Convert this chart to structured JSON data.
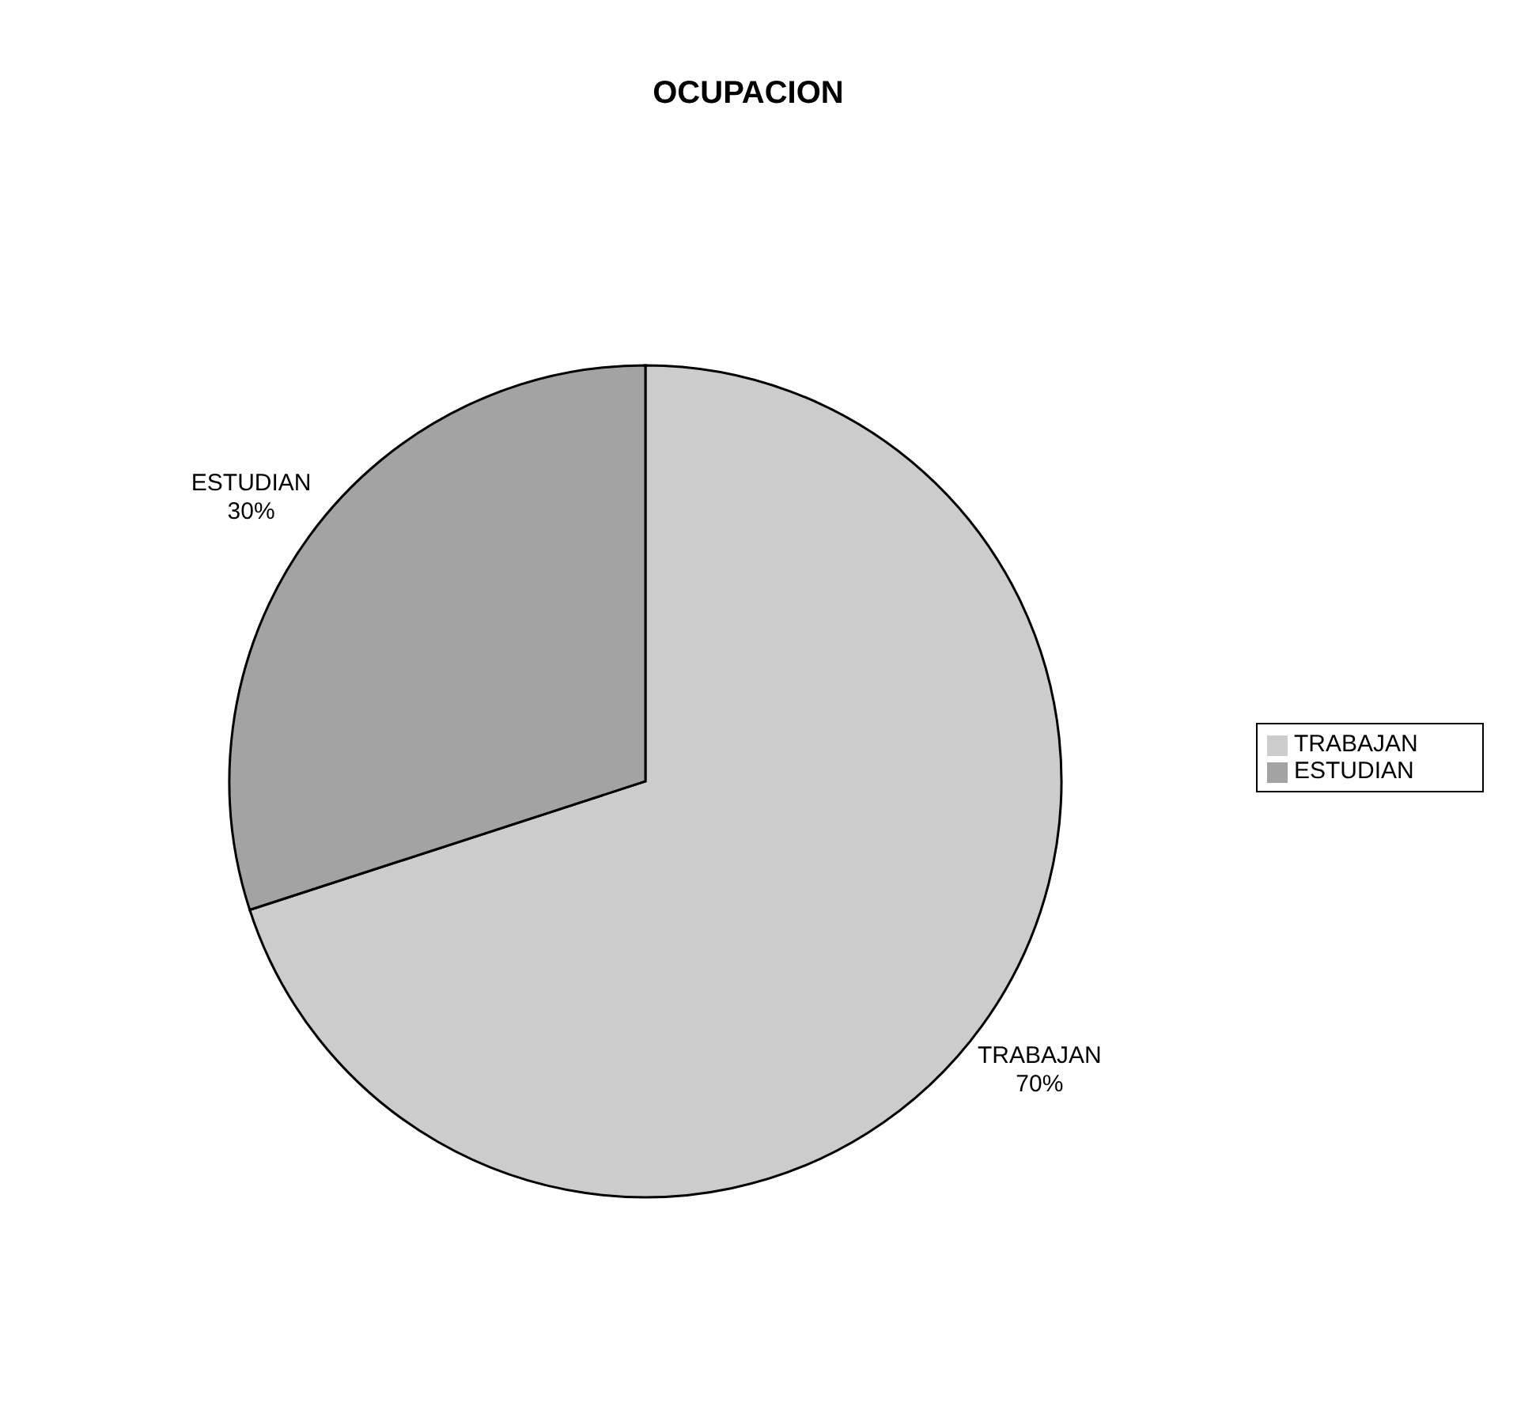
{
  "chart_data": {
    "type": "pie",
    "title": "OCUPACION",
    "categories": [
      "TRABAJAN",
      "ESTUDIAN"
    ],
    "values": [
      70,
      30
    ],
    "value_labels": [
      "70%",
      "30%"
    ],
    "colors": [
      "#cccccc",
      "#a3a3a3"
    ],
    "legend": "right"
  }
}
